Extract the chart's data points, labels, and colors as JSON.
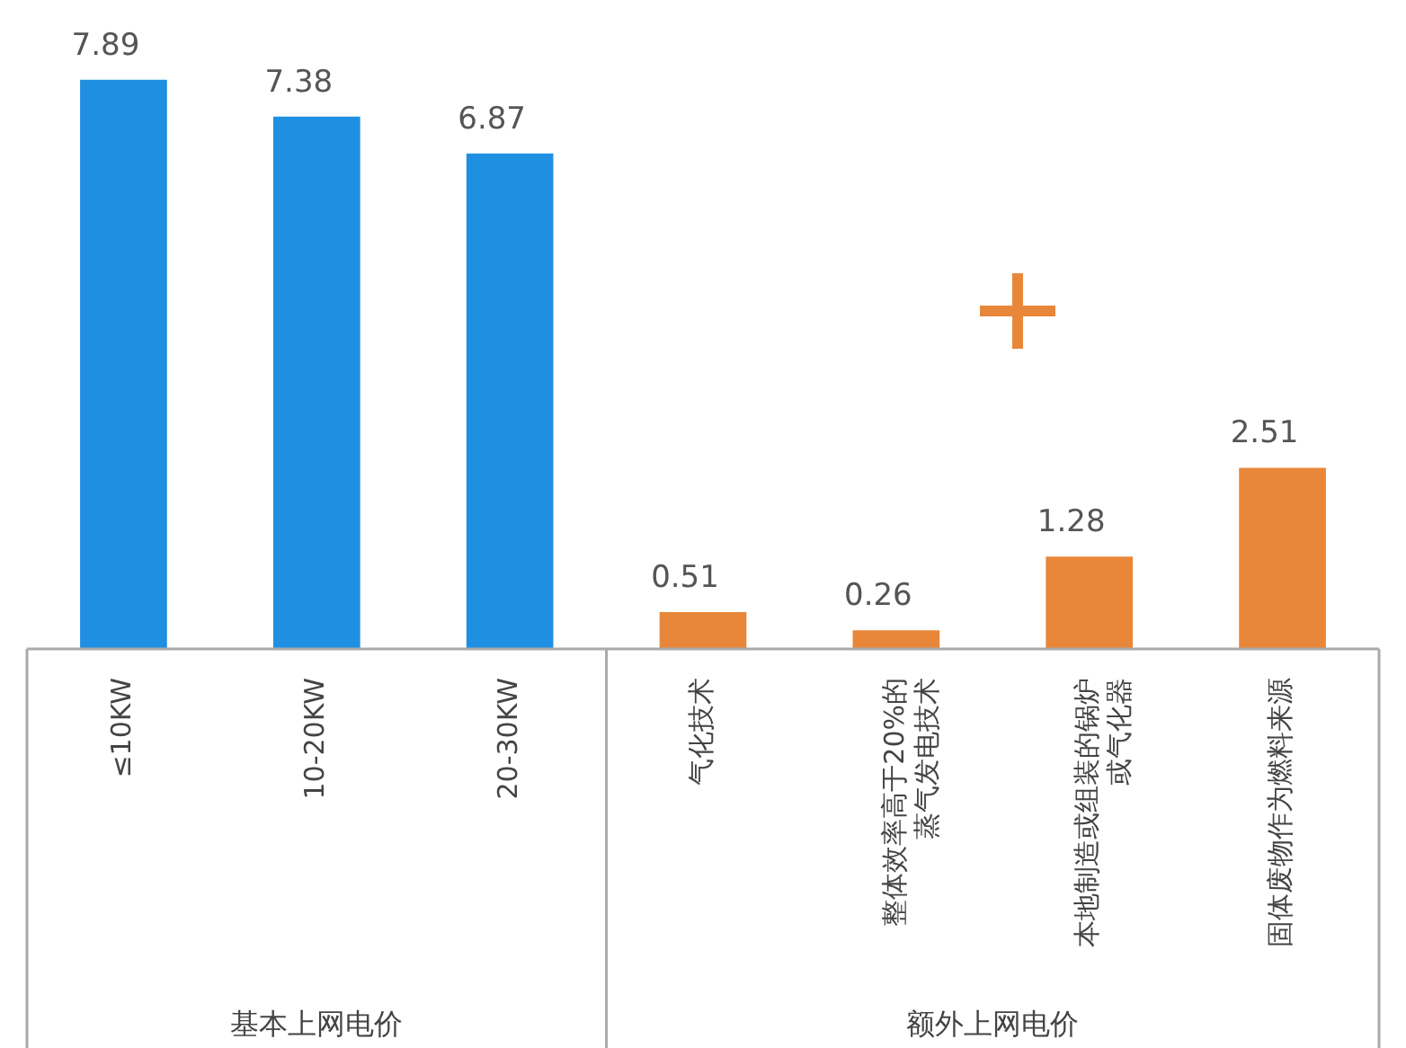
{
  "chart_data": {
    "type": "bar",
    "categories": [
      "≤10KW",
      "10-20KW",
      "20-30KW",
      "气化技术",
      "整体效率高于20%的蒸气发电技术",
      "本地制造或组装的锅炉或气化器",
      "固体废物作为燃料来源"
    ],
    "values": [
      7.89,
      7.38,
      6.87,
      0.51,
      0.26,
      1.28,
      2.51
    ],
    "colors": [
      "#1e8fe1",
      "#1e8fe1",
      "#1e8fe1",
      "#e8873a",
      "#e8873a",
      "#e8873a",
      "#e8873a"
    ],
    "data_labels": true,
    "annotations": [
      "基本上网电价",
      "额外上网电价"
    ]
  }
}
